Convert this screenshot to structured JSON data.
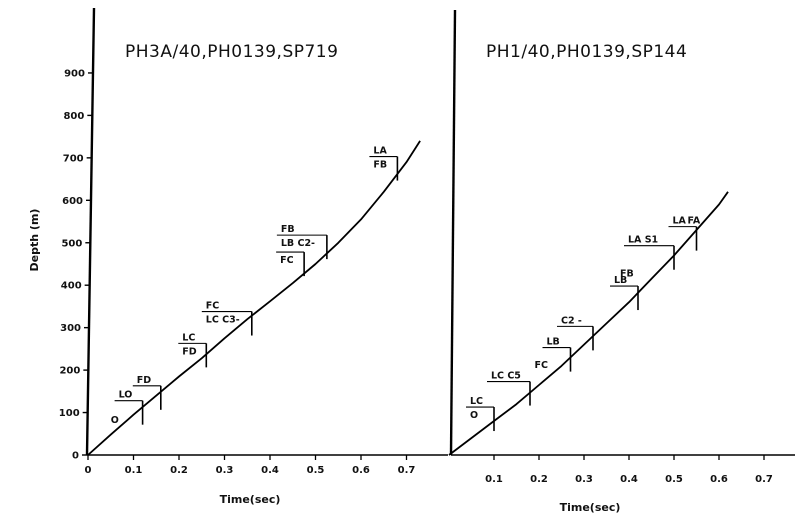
{
  "chart_data": [
    {
      "type": "line",
      "title": "PH3A/40,PH0139,SP719",
      "xlabel": "Time(sec)",
      "ylabel": "Depth (m)",
      "xlim": [
        0,
        0.75
      ],
      "ylim": [
        0,
        950
      ],
      "x_ticks": [
        "0",
        "0.1",
        "0.2",
        "0.3",
        "0.4",
        "0.5",
        "0.6",
        "0.7"
      ],
      "y_ticks": [
        "0",
        "100",
        "200",
        "300",
        "400",
        "500",
        "600",
        "700",
        "800",
        "900"
      ],
      "grid": false,
      "curve": {
        "x": [
          0,
          0.05,
          0.1,
          0.15,
          0.2,
          0.25,
          0.3,
          0.35,
          0.4,
          0.45,
          0.5,
          0.55,
          0.6,
          0.65,
          0.7,
          0.73
        ],
        "y": [
          0,
          48,
          95,
          140,
          185,
          228,
          275,
          320,
          362,
          405,
          450,
          500,
          555,
          620,
          690,
          740
        ]
      },
      "markers": [
        {
          "x": 0.12,
          "y": 95,
          "top": "LO",
          "bottom": ""
        },
        {
          "x": 0.16,
          "y": 130,
          "top": "FD",
          "bottom": ""
        },
        {
          "x": 0.26,
          "y": 230,
          "top": "LC",
          "bottom": "FD"
        },
        {
          "x": 0.36,
          "y": 305,
          "top": "FC",
          "bottom": "LC C3-"
        },
        {
          "x": 0.475,
          "y": 445,
          "top": "",
          "bottom": "FC"
        },
        {
          "x": 0.525,
          "y": 485,
          "top": "FB",
          "bottom": "LB C2-"
        },
        {
          "x": 0.68,
          "y": 670,
          "top": "LA",
          "bottom": "FB"
        }
      ],
      "annotations": [
        {
          "text": "O",
          "x": 0.05,
          "y": 75
        }
      ]
    },
    {
      "type": "line",
      "title": "PH1/40,PH0139,SP144",
      "xlabel": "Time(sec)",
      "ylabel": "",
      "xlim": [
        0,
        0.75
      ],
      "ylim": [
        0,
        950
      ],
      "x_ticks": [
        "0.1",
        "0.2",
        "0.3",
        "0.4",
        "0.5",
        "0.6",
        "0.7"
      ],
      "y_ticks": [],
      "grid": false,
      "curve": {
        "x": [
          0,
          0.05,
          0.1,
          0.15,
          0.2,
          0.25,
          0.3,
          0.35,
          0.4,
          0.45,
          0.5,
          0.55,
          0.6,
          0.62
        ],
        "y": [
          0,
          40,
          80,
          120,
          165,
          210,
          260,
          310,
          360,
          415,
          470,
          530,
          590,
          620
        ]
      },
      "markers": [
        {
          "x": 0.1,
          "y": 80,
          "top": "LC",
          "bottom": "O"
        },
        {
          "x": 0.18,
          "y": 140,
          "top": "LC C5",
          "bottom": ""
        },
        {
          "x": 0.27,
          "y": 220,
          "top": "LB",
          "bottom": ""
        },
        {
          "x": 0.32,
          "y": 270,
          "top": "C2 -",
          "bottom": ""
        },
        {
          "x": 0.42,
          "y": 365,
          "top": "LB",
          "bottom": ""
        },
        {
          "x": 0.5,
          "y": 460,
          "top": "LA  S1",
          "bottom": ""
        },
        {
          "x": 0.55,
          "y": 505,
          "top": "LA",
          "bottom": ""
        }
      ],
      "annotations": [
        {
          "text": "FC",
          "x": 0.19,
          "y": 205
        },
        {
          "text": "FB",
          "x": 0.38,
          "y": 420
        },
        {
          "text": "FA",
          "x": 0.53,
          "y": 545
        }
      ]
    }
  ]
}
